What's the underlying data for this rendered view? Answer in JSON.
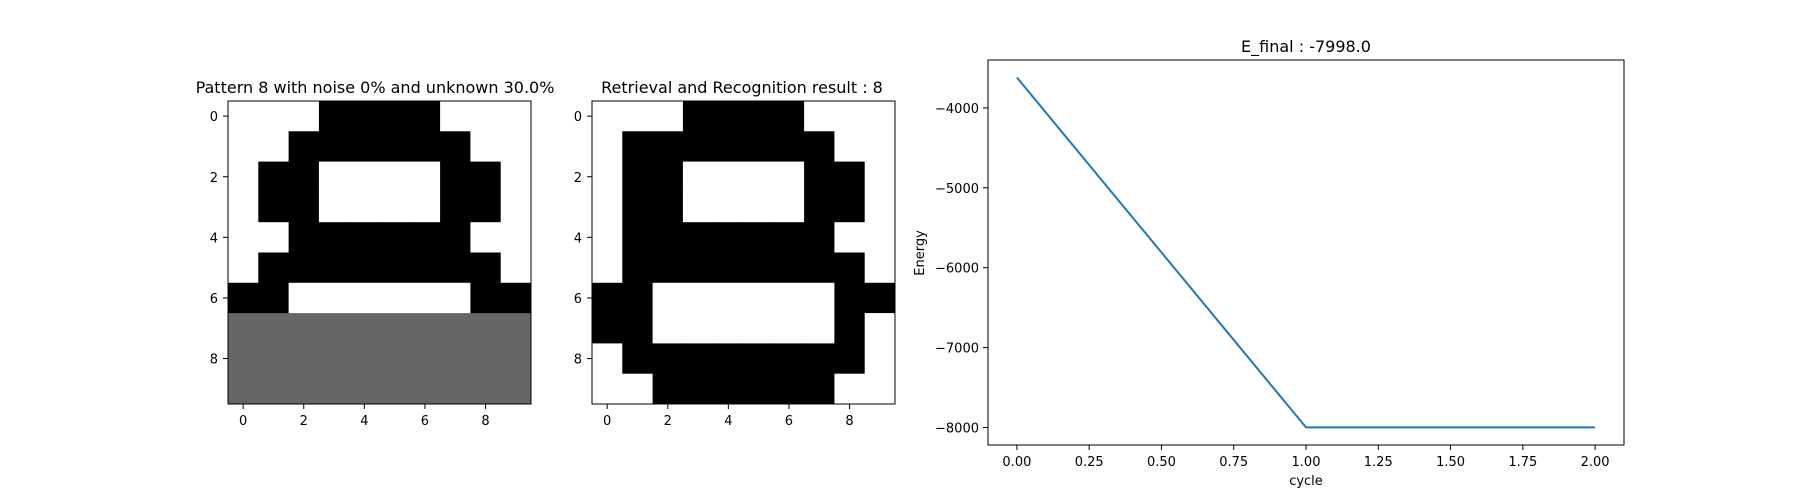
{
  "colors": {
    "on": "#000000",
    "off": "#ffffff",
    "unknown": "#666666",
    "line": "#1f77b4"
  },
  "chart_data": [
    {
      "type": "heatmap",
      "title": "Pattern 8 with noise 0% and unknown 30.0%",
      "xticks": [
        0,
        2,
        4,
        6,
        8
      ],
      "yticks": [
        0,
        2,
        4,
        6,
        8
      ],
      "value_legend": {
        "1": "black",
        "0": "white",
        "0.5": "gray (unknown)"
      },
      "grid": [
        [
          0,
          0,
          0,
          1,
          1,
          1,
          1,
          0,
          0,
          0
        ],
        [
          0,
          0,
          1,
          1,
          1,
          1,
          1,
          1,
          0,
          0
        ],
        [
          0,
          1,
          1,
          0,
          0,
          0,
          0,
          1,
          1,
          0
        ],
        [
          0,
          1,
          1,
          0,
          0,
          0,
          0,
          1,
          1,
          0
        ],
        [
          0,
          0,
          1,
          1,
          1,
          1,
          1,
          1,
          0,
          0
        ],
        [
          0,
          1,
          1,
          1,
          1,
          1,
          1,
          1,
          1,
          0
        ],
        [
          1,
          1,
          0,
          0,
          0,
          0,
          0,
          0,
          1,
          1
        ],
        [
          0.5,
          0.5,
          0.5,
          0.5,
          0.5,
          0.5,
          0.5,
          0.5,
          0.5,
          0.5
        ],
        [
          0.5,
          0.5,
          0.5,
          0.5,
          0.5,
          0.5,
          0.5,
          0.5,
          0.5,
          0.5
        ],
        [
          0.5,
          0.5,
          0.5,
          0.5,
          0.5,
          0.5,
          0.5,
          0.5,
          0.5,
          0.5
        ]
      ]
    },
    {
      "type": "heatmap",
      "title": "Retrieval and Recognition result : 8",
      "xticks": [
        0,
        2,
        4,
        6,
        8
      ],
      "yticks": [
        0,
        2,
        4,
        6,
        8
      ],
      "value_legend": {
        "1": "black",
        "0": "white"
      },
      "grid": [
        [
          0,
          0,
          0,
          1,
          1,
          1,
          1,
          0,
          0,
          0
        ],
        [
          0,
          1,
          1,
          1,
          1,
          1,
          1,
          1,
          0,
          0
        ],
        [
          0,
          1,
          1,
          0,
          0,
          0,
          0,
          1,
          1,
          0
        ],
        [
          0,
          1,
          1,
          0,
          0,
          0,
          0,
          1,
          1,
          0
        ],
        [
          0,
          1,
          1,
          1,
          1,
          1,
          1,
          1,
          0,
          0
        ],
        [
          0,
          1,
          1,
          1,
          1,
          1,
          1,
          1,
          1,
          0
        ],
        [
          1,
          1,
          0,
          0,
          0,
          0,
          0,
          0,
          1,
          1
        ],
        [
          1,
          1,
          0,
          0,
          0,
          0,
          0,
          0,
          1,
          0
        ],
        [
          0,
          1,
          1,
          1,
          1,
          1,
          1,
          1,
          1,
          0
        ],
        [
          0,
          0,
          1,
          1,
          1,
          1,
          1,
          1,
          0,
          0
        ]
      ]
    },
    {
      "type": "line",
      "title": "E_final : -7998.0",
      "xlabel": "cycle",
      "ylabel": "Energy",
      "x": [
        0,
        1,
        2
      ],
      "y": [
        -3620,
        -7998,
        -7998
      ],
      "xlim": [
        -0.1,
        2.1
      ],
      "ylim": [
        -8219,
        -3401
      ],
      "xticks": [
        0.0,
        0.25,
        0.5,
        0.75,
        1.0,
        1.25,
        1.5,
        1.75,
        2.0
      ],
      "xtick_labels": [
        "0.00",
        "0.25",
        "0.50",
        "0.75",
        "1.00",
        "1.25",
        "1.50",
        "1.75",
        "2.00"
      ],
      "yticks": [
        -4000,
        -5000,
        -6000,
        -7000,
        -8000
      ],
      "yticks_labels": [
        "−4000",
        "−5000",
        "−6000",
        "−7000",
        "−8000"
      ],
      "grid": false
    }
  ]
}
